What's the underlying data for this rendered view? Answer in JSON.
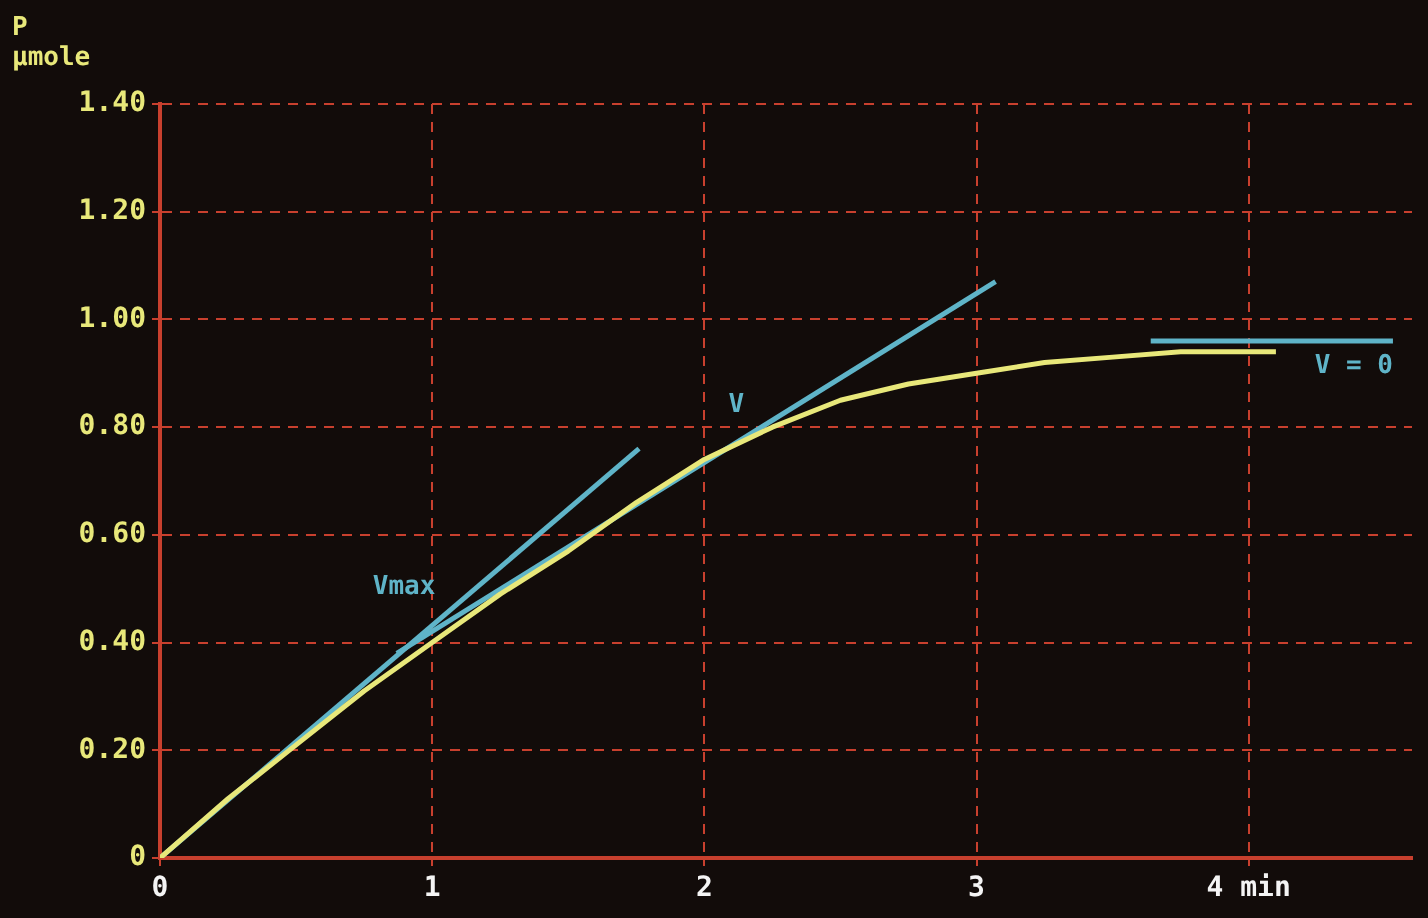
{
  "chart_data": {
    "type": "line",
    "ylabel": "P\nµmole",
    "xlim": [
      0,
      4.6
    ],
    "ylim": [
      0,
      1.4
    ],
    "xticks": [
      0,
      1,
      2,
      3,
      {
        "value": 4,
        "label": "4 min"
      }
    ],
    "yticks": [
      0,
      {
        "value": 0.2,
        "label": "0.20"
      },
      {
        "value": 0.4,
        "label": "0.40"
      },
      {
        "value": 0.6,
        "label": "0.60"
      },
      {
        "value": 0.8,
        "label": "0.80"
      },
      {
        "value": 1,
        "label": "1.00"
      },
      {
        "value": 1.2,
        "label": "1.20"
      },
      {
        "value": 1.4,
        "label": "1.40"
      }
    ],
    "series": [
      {
        "color": "#e8e87a",
        "x": [
          0,
          0.25,
          0.5,
          0.75,
          1,
          1.25,
          1.5,
          1.75,
          2,
          2.25,
          2.5,
          2.75,
          3,
          3.25,
          3.5,
          3.75,
          4,
          4.1
        ],
        "values": [
          0,
          0.11,
          0.21,
          0.31,
          0.4,
          0.49,
          0.57,
          0.66,
          0.74,
          0.8,
          0.85,
          0.88,
          0.9,
          0.92,
          0.93,
          0.94,
          0.94,
          0.94
        ]
      },
      {
        "name": "Vmax",
        "color": "#5fb4c8",
        "x": [
          0,
          1.76
        ],
        "values": [
          0,
          0.76
        ]
      },
      {
        "name": "V",
        "color": "#5fb4c8",
        "x": [
          0.87,
          3.07
        ],
        "values": [
          0.38,
          1.07
        ]
      },
      {
        "name": "V = 0",
        "color": "#5fb4c8",
        "x": [
          3.64,
          4.53
        ],
        "values": [
          0.96,
          0.96
        ]
      }
    ],
    "grid": true,
    "legend": false,
    "marker": "none",
    "line_style": "solid"
  }
}
